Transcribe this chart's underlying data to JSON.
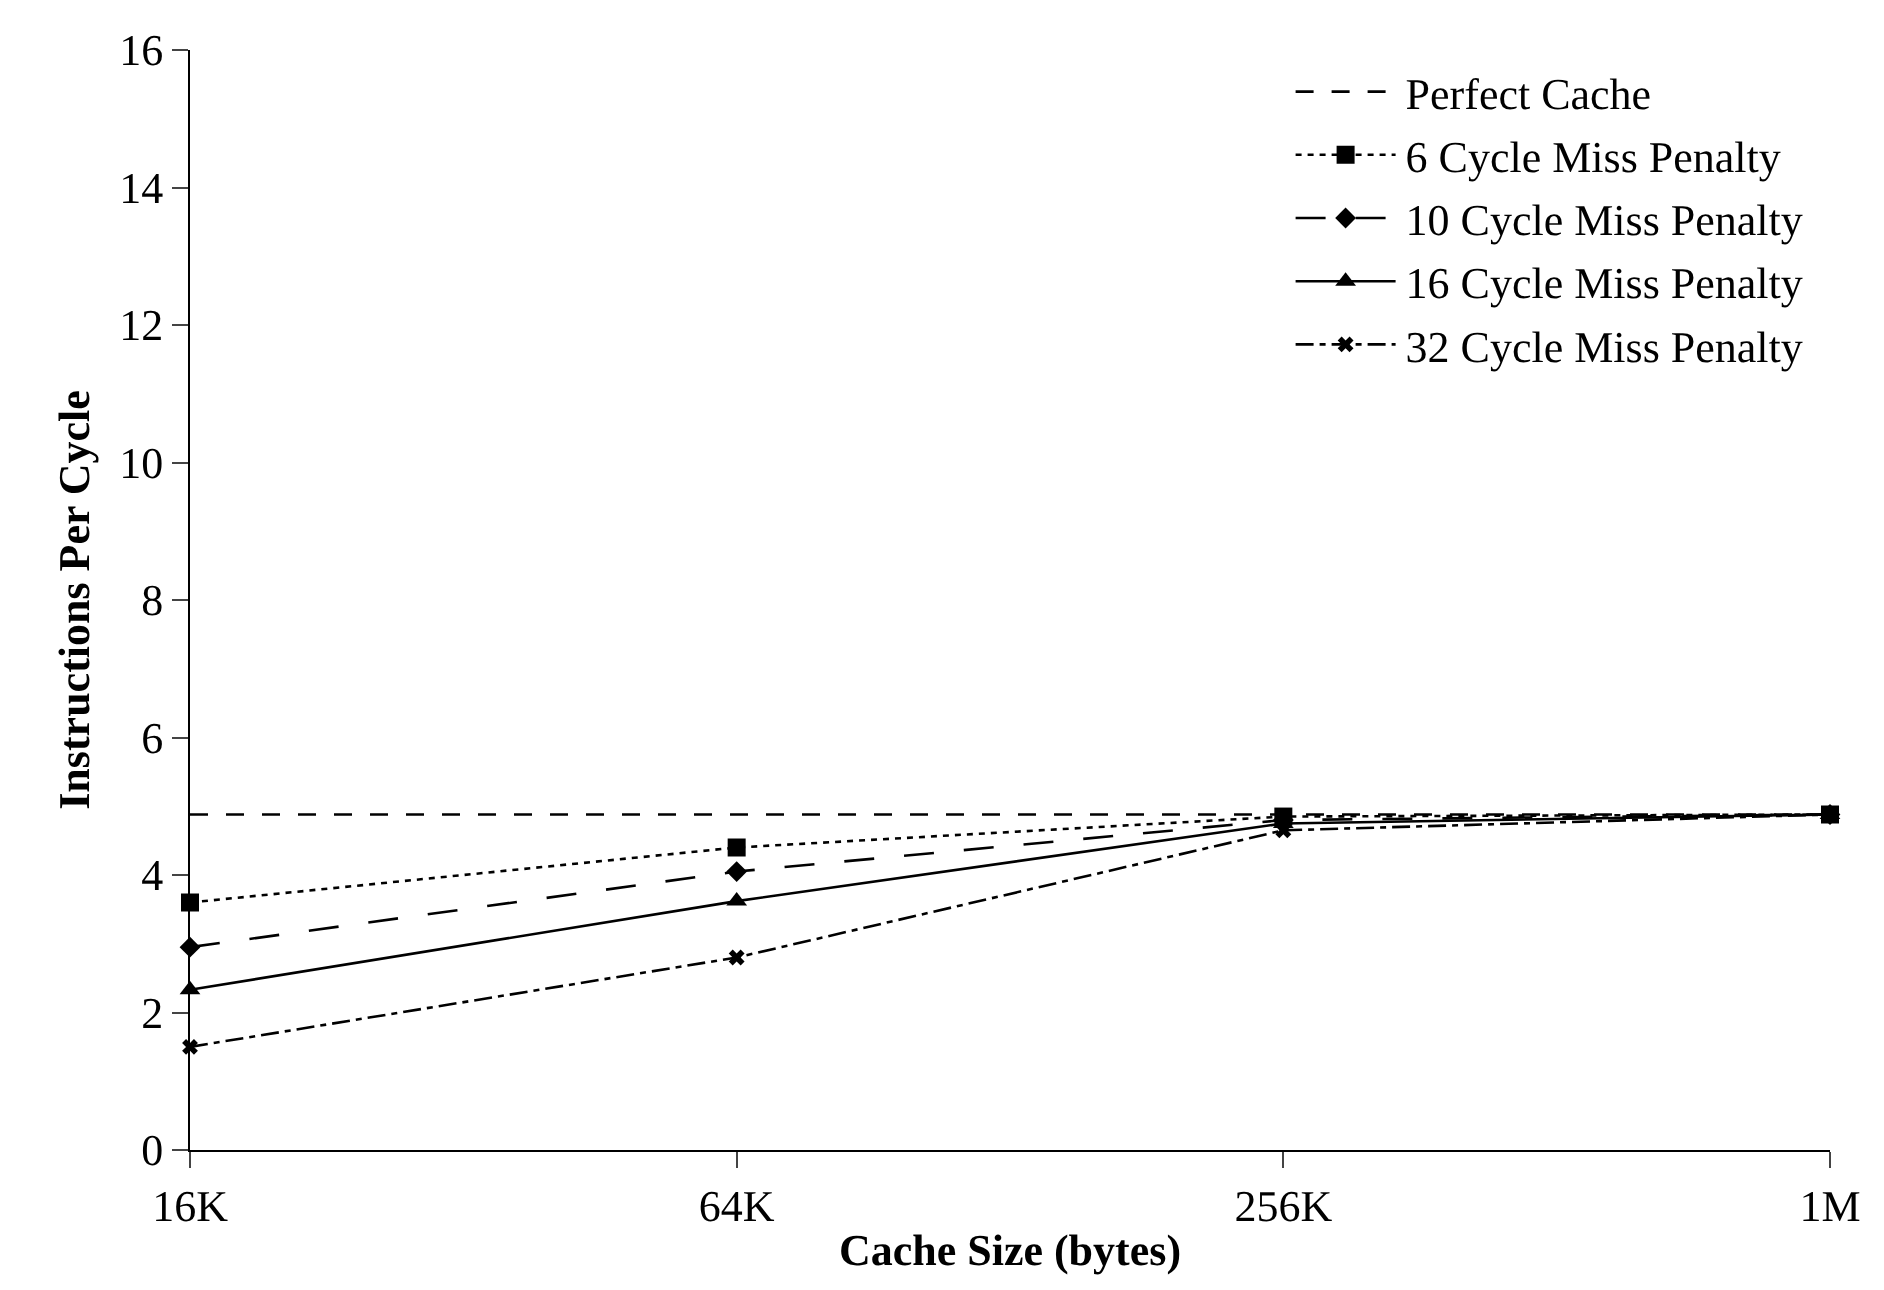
{
  "chart_data": {
    "type": "line",
    "xlabel": "Cache Size (bytes)",
    "ylabel": "Instructions Per Cycle",
    "categories": [
      "16K",
      "64K",
      "256K",
      "1M"
    ],
    "ylim": [
      0,
      16
    ],
    "yticks": [
      0,
      2,
      4,
      6,
      8,
      10,
      12,
      14,
      16
    ],
    "legend": "top right",
    "series": [
      {
        "name": "Perfect Cache",
        "color": "#000000",
        "values": [
          4.88,
          4.88,
          4.88,
          4.88
        ],
        "line_style": "dashed",
        "marker": "none"
      },
      {
        "name": "6 Cycle Miss Penalty",
        "color": "#000000",
        "values": [
          3.6,
          4.4,
          4.85,
          4.88
        ],
        "line_style": "dotted",
        "marker": "square"
      },
      {
        "name": "10 Cycle Miss Penalty",
        "color": "#000000",
        "values": [
          2.95,
          4.05,
          4.8,
          4.88
        ],
        "line_style": "longdash",
        "marker": "diamond"
      },
      {
        "name": "16 Cycle Miss Penalty",
        "color": "#000000",
        "values": [
          2.33,
          3.62,
          4.75,
          4.88
        ],
        "line_style": "solid",
        "marker": "triangle"
      },
      {
        "name": "32 Cycle Miss Penalty",
        "color": "#000000",
        "values": [
          1.5,
          2.8,
          4.65,
          4.88
        ],
        "line_style": "dashdot",
        "marker": "cross"
      }
    ]
  }
}
